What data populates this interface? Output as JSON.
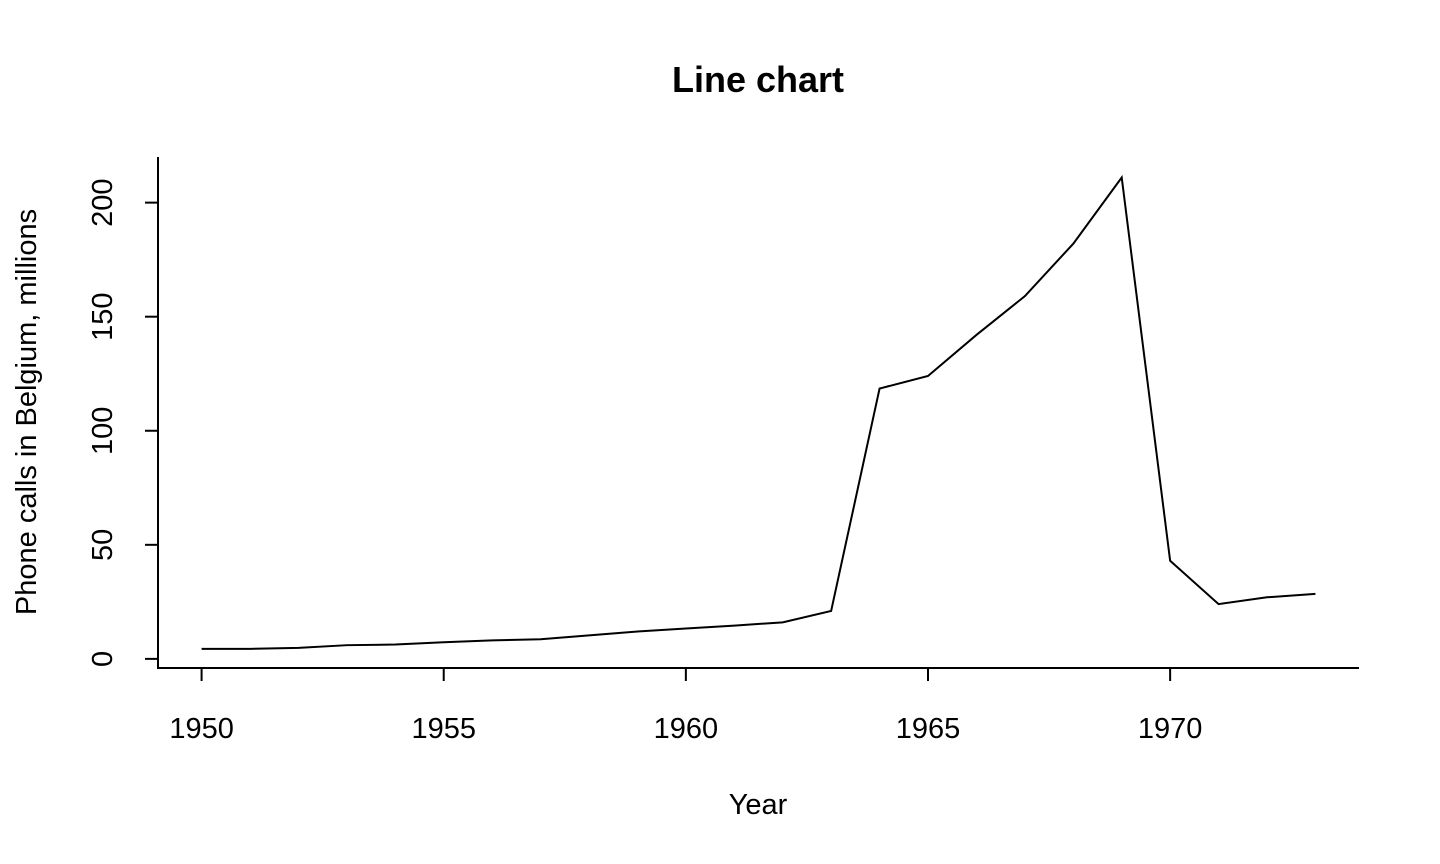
{
  "chart_data": {
    "type": "line",
    "title": "Line chart",
    "xlabel": "Year",
    "ylabel": "Phone calls in Belgium, millions",
    "x": [
      1950,
      1951,
      1952,
      1953,
      1954,
      1955,
      1956,
      1957,
      1958,
      1959,
      1960,
      1961,
      1962,
      1963,
      1964,
      1965,
      1966,
      1967,
      1968,
      1969,
      1970,
      1971,
      1972,
      1973
    ],
    "series": [
      {
        "values": [
          4.4,
          4.4,
          4.8,
          6.0,
          6.3,
          7.3,
          8.1,
          8.6,
          10.3,
          12.0,
          13.3,
          14.6,
          16.0,
          21.0,
          118.5,
          124.0,
          142.0,
          159.0,
          182.0,
          211.0,
          43.0,
          24.0,
          27.0,
          28.5
        ],
        "color": "#000000"
      }
    ],
    "xlim": [
      1949.1,
      1973.9
    ],
    "ylim": [
      -4,
      220
    ],
    "xticks": [
      1950,
      1955,
      1960,
      1965,
      1970
    ],
    "yticks": [
      0,
      50,
      100,
      150,
      200
    ],
    "xtick_labels": [
      "1950",
      "1955",
      "1960",
      "1965",
      "1970"
    ],
    "ytick_labels": [
      "0",
      "50",
      "100",
      "150",
      "200"
    ],
    "grid": false,
    "legend": "none"
  }
}
